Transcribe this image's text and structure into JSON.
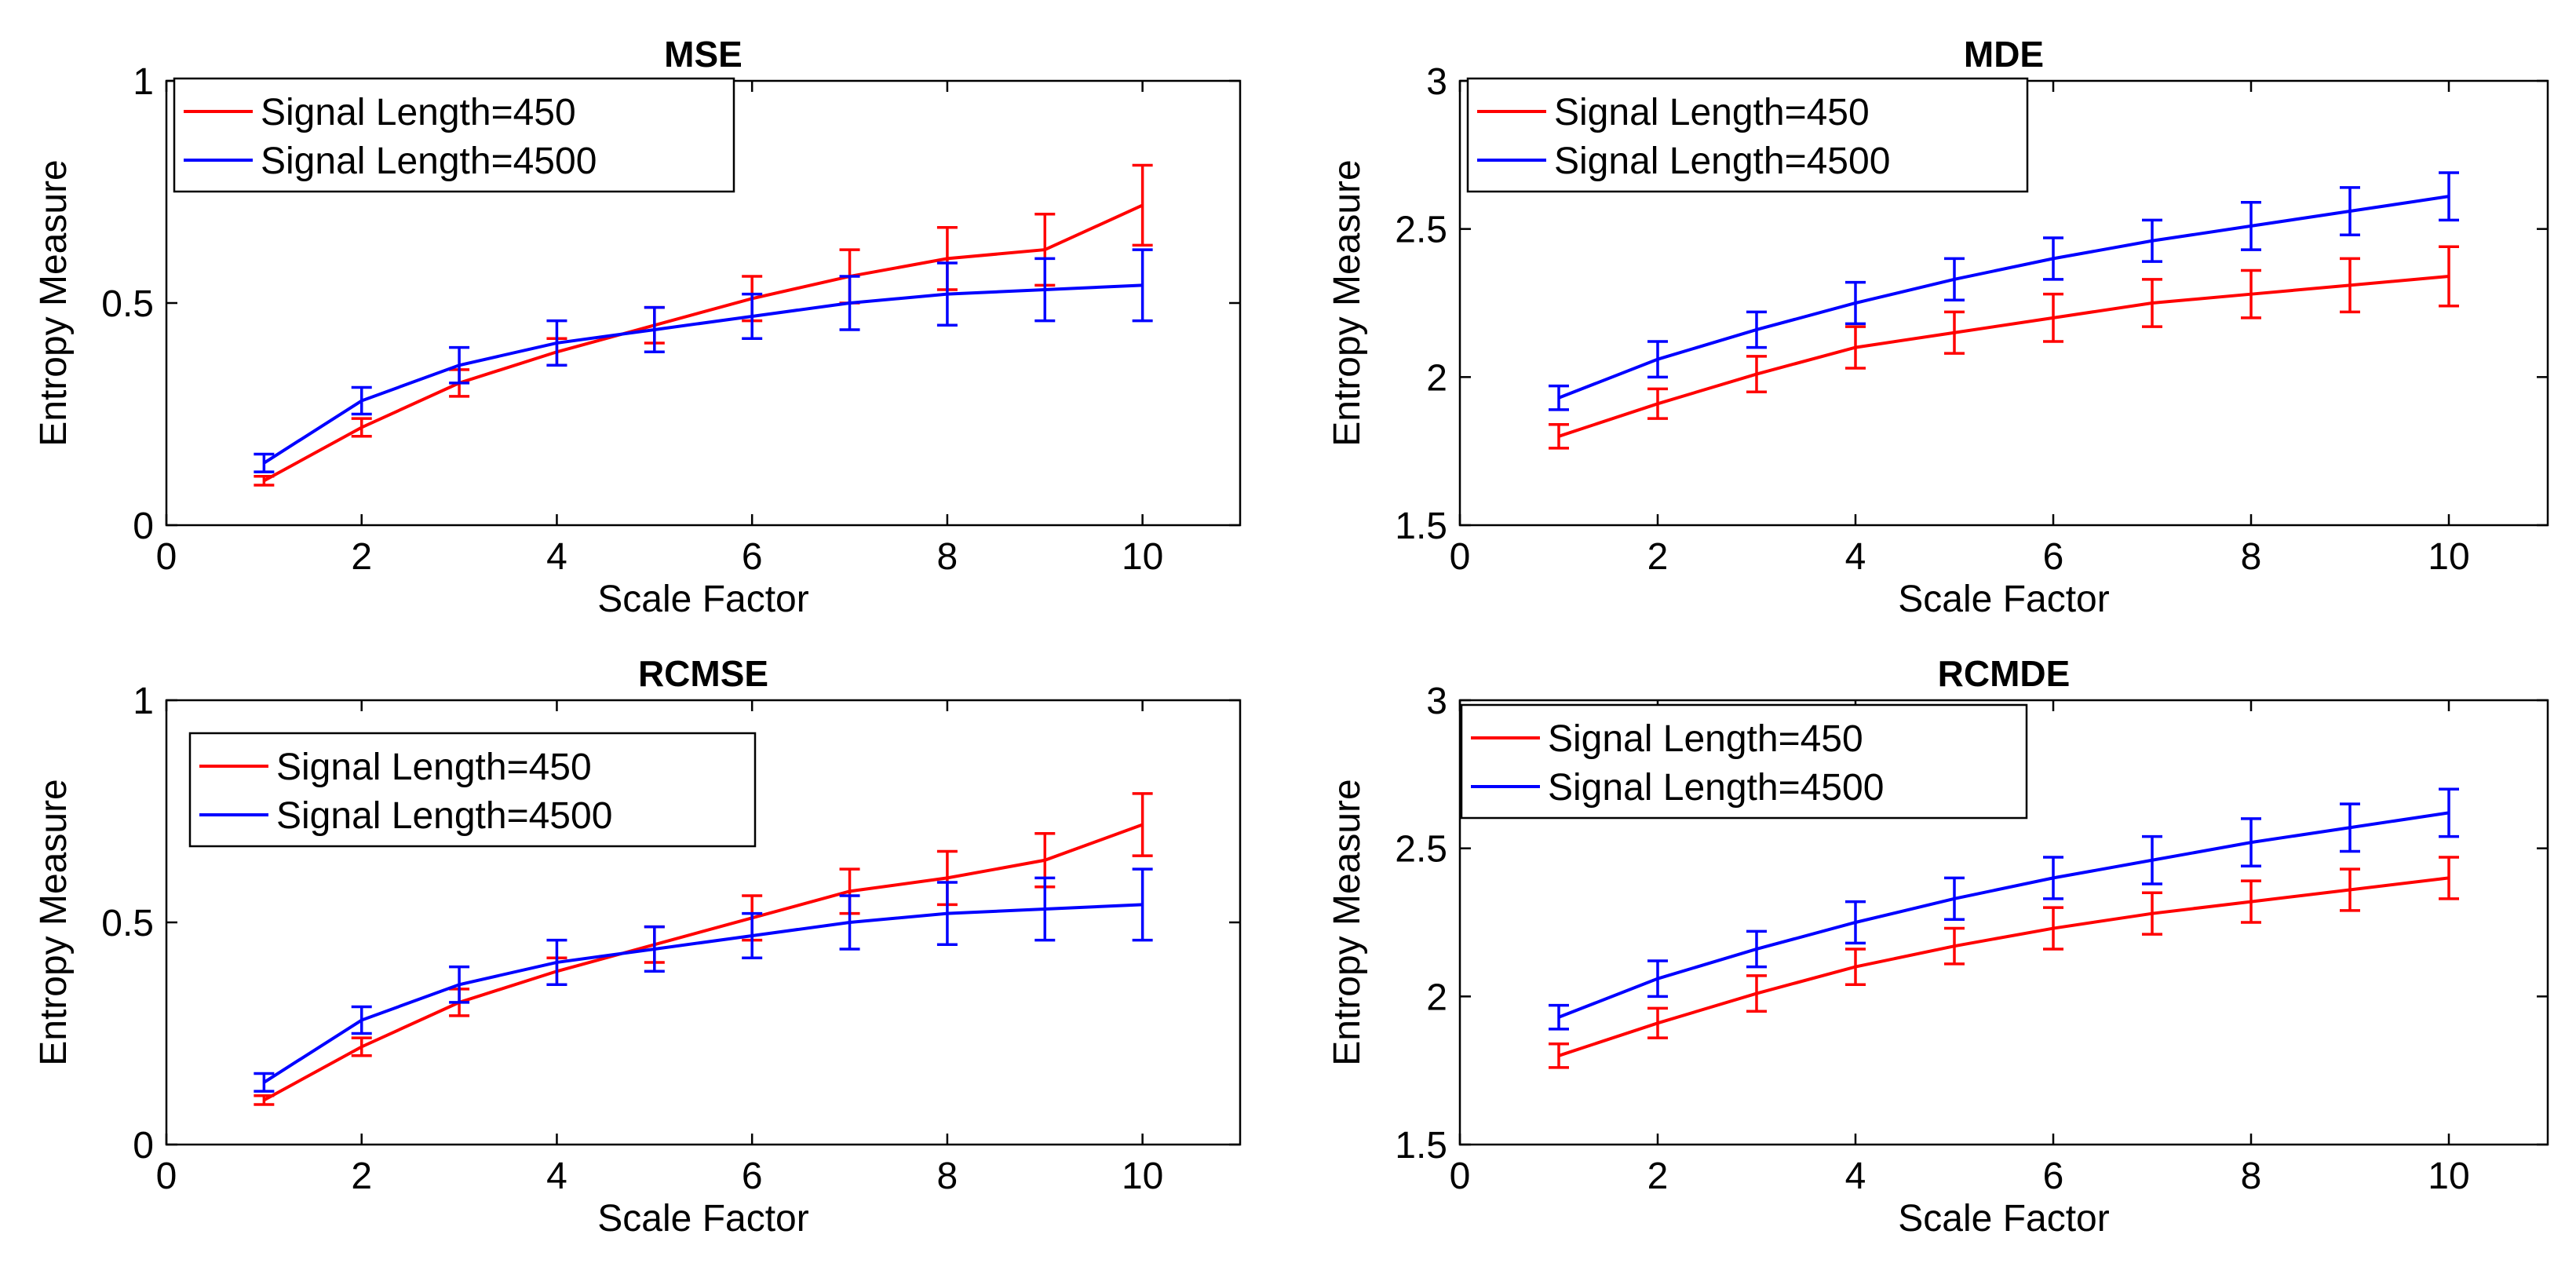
{
  "chart_data": [
    {
      "type": "line",
      "title": "MSE",
      "xlabel": "Scale Factor",
      "ylabel": "Entropy Measure",
      "xlim": [
        0,
        11
      ],
      "ylim": [
        0,
        1
      ],
      "xticks": [
        "0",
        "2",
        "4",
        "6",
        "8",
        "10"
      ],
      "yticks": [
        "0",
        "0.5",
        "1"
      ],
      "legend_position": "top-left",
      "x": [
        1,
        2,
        3,
        4,
        5,
        6,
        7,
        8,
        9,
        10
      ],
      "series": [
        {
          "name": "Signal Length=450",
          "color": "#ff0000",
          "values": [
            0.1,
            0.22,
            0.32,
            0.39,
            0.45,
            0.51,
            0.56,
            0.6,
            0.62,
            0.72
          ],
          "error": [
            0.01,
            0.02,
            0.03,
            0.03,
            0.04,
            0.05,
            0.06,
            0.07,
            0.08,
            0.09
          ]
        },
        {
          "name": "Signal Length=4500",
          "color": "#0000ff",
          "values": [
            0.14,
            0.28,
            0.36,
            0.41,
            0.44,
            0.47,
            0.5,
            0.52,
            0.53,
            0.54
          ],
          "error": [
            0.02,
            0.03,
            0.04,
            0.05,
            0.05,
            0.05,
            0.06,
            0.07,
            0.07,
            0.08
          ]
        }
      ]
    },
    {
      "type": "line",
      "title": "MDE",
      "xlabel": "Scale Factor",
      "ylabel": "Entropy Measure",
      "xlim": [
        0,
        11
      ],
      "ylim": [
        1.5,
        3
      ],
      "xticks": [
        "0",
        "2",
        "4",
        "6",
        "8",
        "10"
      ],
      "yticks": [
        "1.5",
        "2",
        "2.5",
        "3"
      ],
      "legend_position": "top-left",
      "x": [
        1,
        2,
        3,
        4,
        5,
        6,
        7,
        8,
        9,
        10
      ],
      "series": [
        {
          "name": "Signal Length=450",
          "color": "#ff0000",
          "values": [
            1.8,
            1.91,
            2.01,
            2.1,
            2.15,
            2.2,
            2.25,
            2.28,
            2.31,
            2.34
          ],
          "error": [
            0.04,
            0.05,
            0.06,
            0.07,
            0.07,
            0.08,
            0.08,
            0.08,
            0.09,
            0.1
          ]
        },
        {
          "name": "Signal Length=4500",
          "color": "#0000ff",
          "values": [
            1.93,
            2.06,
            2.16,
            2.25,
            2.33,
            2.4,
            2.46,
            2.51,
            2.56,
            2.61
          ],
          "error": [
            0.04,
            0.06,
            0.06,
            0.07,
            0.07,
            0.07,
            0.07,
            0.08,
            0.08,
            0.08
          ]
        }
      ]
    },
    {
      "type": "line",
      "title": "RCMSE",
      "xlabel": "Scale Factor",
      "ylabel": "Entropy Measure",
      "xlim": [
        0,
        11
      ],
      "ylim": [
        0,
        1
      ],
      "xticks": [
        "0",
        "2",
        "4",
        "6",
        "8",
        "10"
      ],
      "yticks": [
        "0",
        "0.5",
        "1"
      ],
      "legend_position": "top-left",
      "x": [
        1,
        2,
        3,
        4,
        5,
        6,
        7,
        8,
        9,
        10
      ],
      "series": [
        {
          "name": "Signal Length=450",
          "color": "#ff0000",
          "values": [
            0.1,
            0.22,
            0.32,
            0.39,
            0.45,
            0.51,
            0.57,
            0.6,
            0.64,
            0.72
          ],
          "error": [
            0.01,
            0.02,
            0.03,
            0.03,
            0.04,
            0.05,
            0.05,
            0.06,
            0.06,
            0.07
          ]
        },
        {
          "name": "Signal Length=4500",
          "color": "#0000ff",
          "values": [
            0.14,
            0.28,
            0.36,
            0.41,
            0.44,
            0.47,
            0.5,
            0.52,
            0.53,
            0.54
          ],
          "error": [
            0.02,
            0.03,
            0.04,
            0.05,
            0.05,
            0.05,
            0.06,
            0.07,
            0.07,
            0.08
          ]
        }
      ]
    },
    {
      "type": "line",
      "title": "RCMDE",
      "xlabel": "Scale Factor",
      "ylabel": "Entropy Measure",
      "xlim": [
        0,
        11
      ],
      "ylim": [
        1.5,
        3
      ],
      "xticks": [
        "0",
        "2",
        "4",
        "6",
        "8",
        "10"
      ],
      "yticks": [
        "1.5",
        "2",
        "2.5",
        "3"
      ],
      "legend_position": "top-left",
      "x": [
        1,
        2,
        3,
        4,
        5,
        6,
        7,
        8,
        9,
        10
      ],
      "series": [
        {
          "name": "Signal Length=450",
          "color": "#ff0000",
          "values": [
            1.8,
            1.91,
            2.01,
            2.1,
            2.17,
            2.23,
            2.28,
            2.32,
            2.36,
            2.4
          ],
          "error": [
            0.04,
            0.05,
            0.06,
            0.06,
            0.06,
            0.07,
            0.07,
            0.07,
            0.07,
            0.07
          ]
        },
        {
          "name": "Signal Length=4500",
          "color": "#0000ff",
          "values": [
            1.93,
            2.06,
            2.16,
            2.25,
            2.33,
            2.4,
            2.46,
            2.52,
            2.57,
            2.62
          ],
          "error": [
            0.04,
            0.06,
            0.06,
            0.07,
            0.07,
            0.07,
            0.08,
            0.08,
            0.08,
            0.08
          ]
        }
      ]
    }
  ]
}
